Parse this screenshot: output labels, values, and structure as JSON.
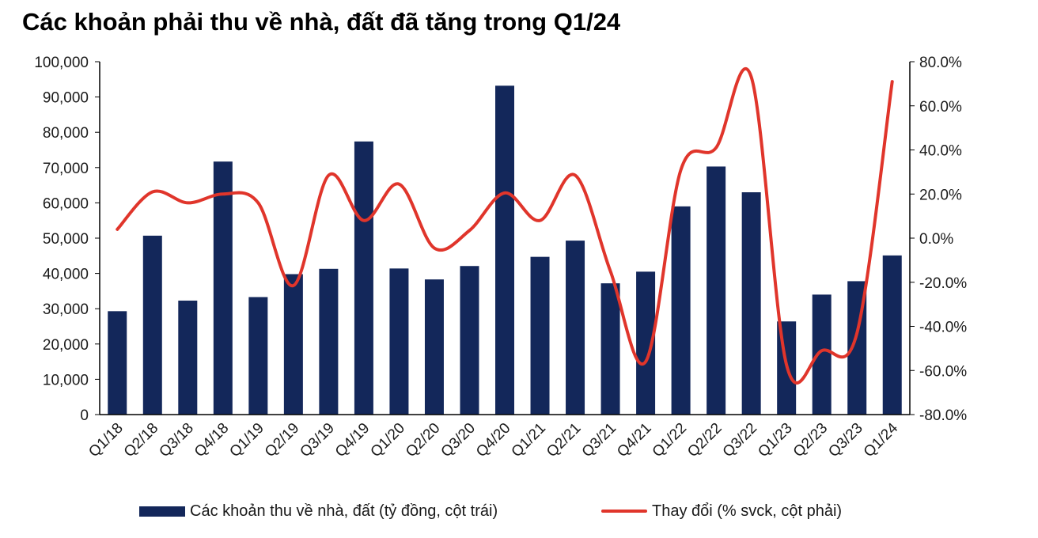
{
  "title": "Các khoản phải thu về nhà, đất đã tăng trong Q1/24",
  "legend": {
    "bar_label": "Các khoản thu về nhà, đất (tỷ đồng, cột trái)",
    "line_label": "Thay đổi (% svck, cột phải)"
  },
  "colors": {
    "bar": "#13275a",
    "line": "#e0352b",
    "axis": "#000000"
  },
  "chart_data": {
    "type": "bar",
    "categories": [
      "Q1/18",
      "Q2/18",
      "Q3/18",
      "Q4/18",
      "Q1/19",
      "Q2/19",
      "Q3/19",
      "Q4/19",
      "Q1/20",
      "Q2/20",
      "Q3/20",
      "Q4/20",
      "Q1/21",
      "Q2/21",
      "Q3/21",
      "Q4/21",
      "Q1/22",
      "Q2/22",
      "Q3/22",
      "Q1/23",
      "Q2/23",
      "Q3/23",
      "Q1/24"
    ],
    "series": [
      {
        "name": "Các khoản thu về nhà, đất (tỷ đồng, cột trái)",
        "type": "bar",
        "axis": "left",
        "values": [
          29300,
          50700,
          32300,
          71700,
          33300,
          39800,
          41300,
          77400,
          41400,
          38300,
          42100,
          93200,
          44700,
          49300,
          37200,
          40500,
          59000,
          70300,
          63000,
          26400,
          34000,
          37800,
          45100
        ]
      },
      {
        "name": "Thay đổi (% svck, cột phải)",
        "type": "line",
        "axis": "right",
        "values": [
          4.0,
          21.0,
          16.0,
          20.0,
          16.0,
          -21.5,
          28.5,
          8.0,
          24.5,
          -4.5,
          3.5,
          20.5,
          8.0,
          28.5,
          -15.0,
          -56.0,
          31.0,
          41.0,
          73.0,
          -57.5,
          -51.0,
          -43.0,
          71.0
        ]
      }
    ],
    "y_left": {
      "min": 0,
      "max": 100000,
      "step": 10000,
      "tick_labels": [
        "0",
        "10,000",
        "20,000",
        "30,000",
        "40,000",
        "50,000",
        "60,000",
        "70,000",
        "80,000",
        "90,000",
        "100,000"
      ]
    },
    "y_right": {
      "min": -80,
      "max": 80,
      "step": 20,
      "tick_labels": [
        "-80.0%",
        "-60.0%",
        "-40.0%",
        "-20.0%",
        "0.0%",
        "20.0%",
        "40.0%",
        "60.0%",
        "80.0%"
      ]
    },
    "grid": false,
    "legend_position": "bottom"
  }
}
